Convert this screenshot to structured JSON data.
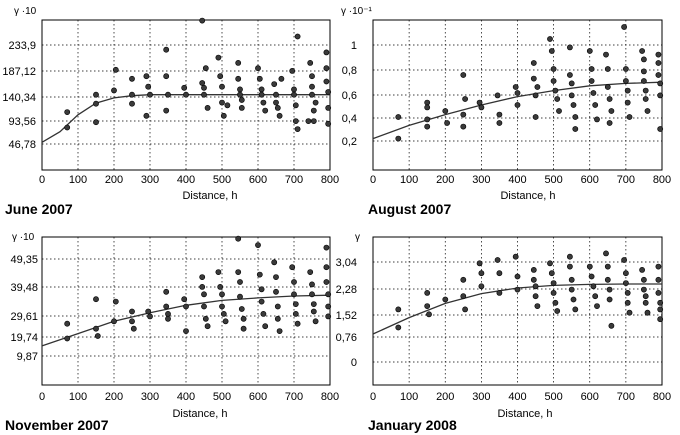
{
  "chart_data": [
    {
      "type": "scatter",
      "caption": "June 2007",
      "ylabel": "γ ·10",
      "xlabel": "Distance, h",
      "xticks": [
        "0",
        "100",
        "200",
        "300",
        "400",
        "500",
        "600",
        "700",
        "800"
      ],
      "yticks": [
        "46,78",
        "93,56",
        "140,34",
        "187,12",
        "233,9"
      ],
      "xlim": [
        0,
        800
      ],
      "ylim": [
        0,
        280.68
      ],
      "grid": true,
      "points": [
        [
          70,
          107
        ],
        [
          70,
          78
        ],
        [
          150,
          88
        ],
        [
          150,
          123
        ],
        [
          150,
          140
        ],
        [
          200,
          148
        ],
        [
          205,
          187
        ],
        [
          250,
          170
        ],
        [
          250,
          140
        ],
        [
          250,
          123
        ],
        [
          290,
          175
        ],
        [
          295,
          155
        ],
        [
          290,
          100
        ],
        [
          300,
          140
        ],
        [
          345,
          225
        ],
        [
          345,
          175
        ],
        [
          345,
          110
        ],
        [
          350,
          140
        ],
        [
          395,
          153
        ],
        [
          400,
          140
        ],
        [
          445,
          280
        ],
        [
          445,
          162
        ],
        [
          450,
          153
        ],
        [
          450,
          140
        ],
        [
          455,
          190
        ],
        [
          460,
          115
        ],
        [
          490,
          210
        ],
        [
          495,
          175
        ],
        [
          500,
          155
        ],
        [
          500,
          125
        ],
        [
          505,
          100
        ],
        [
          515,
          120
        ],
        [
          545,
          200
        ],
        [
          545,
          170
        ],
        [
          550,
          150
        ],
        [
          550,
          140
        ],
        [
          555,
          130
        ],
        [
          555,
          115
        ],
        [
          600,
          190
        ],
        [
          605,
          170
        ],
        [
          610,
          150
        ],
        [
          610,
          140
        ],
        [
          615,
          125
        ],
        [
          620,
          110
        ],
        [
          645,
          160
        ],
        [
          650,
          140
        ],
        [
          650,
          125
        ],
        [
          655,
          115
        ],
        [
          660,
          100
        ],
        [
          665,
          170
        ],
        [
          695,
          185
        ],
        [
          700,
          150
        ],
        [
          700,
          140
        ],
        [
          705,
          120
        ],
        [
          705,
          90
        ],
        [
          710,
          250
        ],
        [
          710,
          75
        ],
        [
          745,
          200
        ],
        [
          750,
          175
        ],
        [
          750,
          155
        ],
        [
          750,
          140
        ],
        [
          755,
          110
        ],
        [
          755,
          90
        ],
        [
          760,
          125
        ],
        [
          790,
          220
        ],
        [
          790,
          190
        ],
        [
          790,
          165
        ],
        [
          795,
          145
        ],
        [
          795,
          115
        ],
        [
          795,
          85
        ],
        [
          740,
          90
        ]
      ],
      "fit": [
        [
          0,
          50
        ],
        [
          50,
          70
        ],
        [
          100,
          102
        ],
        [
          150,
          124
        ],
        [
          200,
          134
        ],
        [
          250,
          138
        ],
        [
          300,
          140
        ],
        [
          800,
          140
        ]
      ]
    },
    {
      "type": "scatter",
      "caption": "August 2007",
      "ylabel": "γ ·10⁻¹",
      "xlabel": "Distance, h",
      "xticks": [
        "0",
        "100",
        "200",
        "300",
        "400",
        "500",
        "600",
        "700",
        "800"
      ],
      "yticks": [
        "0,2",
        "0,4",
        "0,6",
        "0,8",
        "1"
      ],
      "xlim": [
        0,
        800
      ],
      "ylim": [
        0,
        1.2
      ],
      "grid": true,
      "points": [
        [
          70,
          0.4
        ],
        [
          70,
          0.22
        ],
        [
          150,
          0.52
        ],
        [
          150,
          0.48
        ],
        [
          150,
          0.38
        ],
        [
          150,
          0.32
        ],
        [
          200,
          0.45
        ],
        [
          205,
          0.35
        ],
        [
          250,
          0.75
        ],
        [
          255,
          0.55
        ],
        [
          250,
          0.42
        ],
        [
          250,
          0.32
        ],
        [
          295,
          0.52
        ],
        [
          300,
          0.48
        ],
        [
          345,
          0.58
        ],
        [
          350,
          0.42
        ],
        [
          350,
          0.35
        ],
        [
          395,
          0.65
        ],
        [
          400,
          0.6
        ],
        [
          400,
          0.5
        ],
        [
          445,
          0.85
        ],
        [
          445,
          0.72
        ],
        [
          450,
          0.58
        ],
        [
          450,
          0.4
        ],
        [
          455,
          0.65
        ],
        [
          490,
          1.05
        ],
        [
          495,
          0.95
        ],
        [
          500,
          0.8
        ],
        [
          500,
          0.7
        ],
        [
          505,
          0.62
        ],
        [
          510,
          0.55
        ],
        [
          515,
          0.45
        ],
        [
          545,
          0.98
        ],
        [
          545,
          0.75
        ],
        [
          550,
          0.68
        ],
        [
          550,
          0.58
        ],
        [
          555,
          0.5
        ],
        [
          560,
          0.4
        ],
        [
          560,
          0.3
        ],
        [
          600,
          0.95
        ],
        [
          605,
          0.8
        ],
        [
          605,
          0.7
        ],
        [
          610,
          0.6
        ],
        [
          615,
          0.5
        ],
        [
          620,
          0.38
        ],
        [
          645,
          0.92
        ],
        [
          650,
          0.8
        ],
        [
          650,
          0.65
        ],
        [
          655,
          0.55
        ],
        [
          655,
          0.35
        ],
        [
          660,
          0.45
        ],
        [
          695,
          1.15
        ],
        [
          700,
          0.8
        ],
        [
          700,
          0.7
        ],
        [
          705,
          0.62
        ],
        [
          705,
          0.52
        ],
        [
          710,
          0.4
        ],
        [
          745,
          0.95
        ],
        [
          750,
          0.88
        ],
        [
          750,
          0.78
        ],
        [
          750,
          0.7
        ],
        [
          755,
          0.62
        ],
        [
          755,
          0.55
        ],
        [
          760,
          0.45
        ],
        [
          790,
          0.92
        ],
        [
          790,
          0.85
        ],
        [
          790,
          0.75
        ],
        [
          795,
          0.68
        ],
        [
          795,
          0.58
        ],
        [
          795,
          0.3
        ]
      ],
      "fit": [
        [
          0,
          0.22
        ],
        [
          100,
          0.33
        ],
        [
          200,
          0.42
        ],
        [
          300,
          0.5
        ],
        [
          400,
          0.57
        ],
        [
          500,
          0.62
        ],
        [
          600,
          0.66
        ],
        [
          700,
          0.68
        ],
        [
          800,
          0.69
        ]
      ]
    },
    {
      "type": "scatter",
      "caption": "November 2007",
      "ylabel": "γ ·10",
      "xlabel": "Distance, h",
      "xticks": [
        "0",
        "100",
        "200",
        "300",
        "400",
        "500",
        "600",
        "700",
        "800"
      ],
      "yticks": [
        "9,87",
        "19,74",
        "29,61",
        "39,48",
        "49,35"
      ],
      "xlim": [
        0,
        800
      ],
      "ylim": [
        0,
        57.6
      ],
      "grid": true,
      "points": [
        [
          70,
          23
        ],
        [
          70,
          17
        ],
        [
          150,
          33
        ],
        [
          150,
          21
        ],
        [
          155,
          18
        ],
        [
          200,
          24
        ],
        [
          205,
          32
        ],
        [
          250,
          28
        ],
        [
          250,
          24
        ],
        [
          255,
          21
        ],
        [
          295,
          28
        ],
        [
          300,
          26
        ],
        [
          345,
          36
        ],
        [
          345,
          30
        ],
        [
          350,
          27
        ],
        [
          350,
          25
        ],
        [
          395,
          33
        ],
        [
          400,
          30
        ],
        [
          400,
          20
        ],
        [
          445,
          42
        ],
        [
          445,
          38
        ],
        [
          450,
          35
        ],
        [
          450,
          30
        ],
        [
          455,
          25
        ],
        [
          460,
          22
        ],
        [
          490,
          44
        ],
        [
          495,
          38
        ],
        [
          500,
          35
        ],
        [
          500,
          30
        ],
        [
          505,
          27
        ],
        [
          510,
          24
        ],
        [
          545,
          57.6
        ],
        [
          545,
          44
        ],
        [
          550,
          40
        ],
        [
          550,
          34
        ],
        [
          555,
          29
        ],
        [
          560,
          25
        ],
        [
          560,
          21
        ],
        [
          600,
          55
        ],
        [
          605,
          43
        ],
        [
          610,
          37
        ],
        [
          610,
          32
        ],
        [
          615,
          27
        ],
        [
          620,
          22
        ],
        [
          645,
          48
        ],
        [
          650,
          42
        ],
        [
          650,
          36
        ],
        [
          655,
          30
        ],
        [
          655,
          25
        ],
        [
          660,
          20
        ],
        [
          695,
          46
        ],
        [
          700,
          40
        ],
        [
          700,
          35
        ],
        [
          705,
          31
        ],
        [
          705,
          27
        ],
        [
          710,
          23
        ],
        [
          745,
          44
        ],
        [
          750,
          39
        ],
        [
          750,
          35
        ],
        [
          755,
          31
        ],
        [
          755,
          28
        ],
        [
          760,
          24
        ],
        [
          790,
          54
        ],
        [
          790,
          46
        ],
        [
          790,
          40
        ],
        [
          795,
          35
        ],
        [
          795,
          30
        ],
        [
          795,
          26
        ]
      ],
      "fit": [
        [
          0,
          14
        ],
        [
          100,
          19
        ],
        [
          200,
          24
        ],
        [
          300,
          27.5
        ],
        [
          400,
          30.5
        ],
        [
          500,
          32.5
        ],
        [
          600,
          33.5
        ],
        [
          700,
          34.3
        ],
        [
          800,
          34.6
        ]
      ]
    },
    {
      "type": "scatter",
      "caption": "January 2008",
      "ylabel": "γ",
      "xlabel": "Distance, h",
      "xticks": [
        "0",
        "100",
        "200",
        "300",
        "400",
        "500",
        "600",
        "700",
        "800"
      ],
      "yticks": [
        "0",
        "0,76",
        "1,52",
        "2,28",
        "3,04"
      ],
      "xlim": [
        0,
        800
      ],
      "ylim": [
        -0.42,
        3.7
      ],
      "grid": true,
      "points": [
        [
          70,
          1.6
        ],
        [
          70,
          1.05
        ],
        [
          150,
          2.1
        ],
        [
          150,
          1.7
        ],
        [
          155,
          1.45
        ],
        [
          200,
          1.9
        ],
        [
          250,
          2.5
        ],
        [
          250,
          2.0
        ],
        [
          255,
          1.6
        ],
        [
          295,
          3.0
        ],
        [
          300,
          2.7
        ],
        [
          300,
          2.3
        ],
        [
          345,
          3.1
        ],
        [
          350,
          2.7
        ],
        [
          350,
          2.1
        ],
        [
          395,
          3.2
        ],
        [
          400,
          2.6
        ],
        [
          400,
          2.2
        ],
        [
          445,
          2.8
        ],
        [
          445,
          2.5
        ],
        [
          450,
          2.3
        ],
        [
          450,
          2.0
        ],
        [
          455,
          1.7
        ],
        [
          490,
          3.0
        ],
        [
          495,
          2.7
        ],
        [
          500,
          2.4
        ],
        [
          500,
          2.1
        ],
        [
          505,
          1.8
        ],
        [
          510,
          1.55
        ],
        [
          545,
          3.2
        ],
        [
          545,
          2.9
        ],
        [
          550,
          2.5
        ],
        [
          550,
          2.2
        ],
        [
          555,
          1.9
        ],
        [
          560,
          1.6
        ],
        [
          600,
          2.9
        ],
        [
          605,
          2.6
        ],
        [
          610,
          2.3
        ],
        [
          615,
          2.0
        ],
        [
          620,
          1.7
        ],
        [
          645,
          3.3
        ],
        [
          650,
          2.9
        ],
        [
          650,
          2.5
        ],
        [
          655,
          2.2
        ],
        [
          655,
          1.9
        ],
        [
          660,
          1.1
        ],
        [
          695,
          3.1
        ],
        [
          700,
          2.7
        ],
        [
          700,
          2.4
        ],
        [
          705,
          2.1
        ],
        [
          705,
          1.8
        ],
        [
          710,
          1.5
        ],
        [
          745,
          2.8
        ],
        [
          750,
          2.5
        ],
        [
          750,
          2.2
        ],
        [
          755,
          2.0
        ],
        [
          755,
          1.8
        ],
        [
          760,
          1.5
        ],
        [
          790,
          2.9
        ],
        [
          790,
          2.5
        ],
        [
          790,
          2.1
        ],
        [
          795,
          1.8
        ],
        [
          795,
          1.6
        ],
        [
          795,
          1.3
        ]
      ],
      "fit": [
        [
          0,
          0.85
        ],
        [
          100,
          1.35
        ],
        [
          200,
          1.78
        ],
        [
          300,
          2.08
        ],
        [
          400,
          2.25
        ],
        [
          500,
          2.33
        ],
        [
          600,
          2.36
        ],
        [
          700,
          2.37
        ],
        [
          800,
          2.37
        ]
      ]
    }
  ]
}
